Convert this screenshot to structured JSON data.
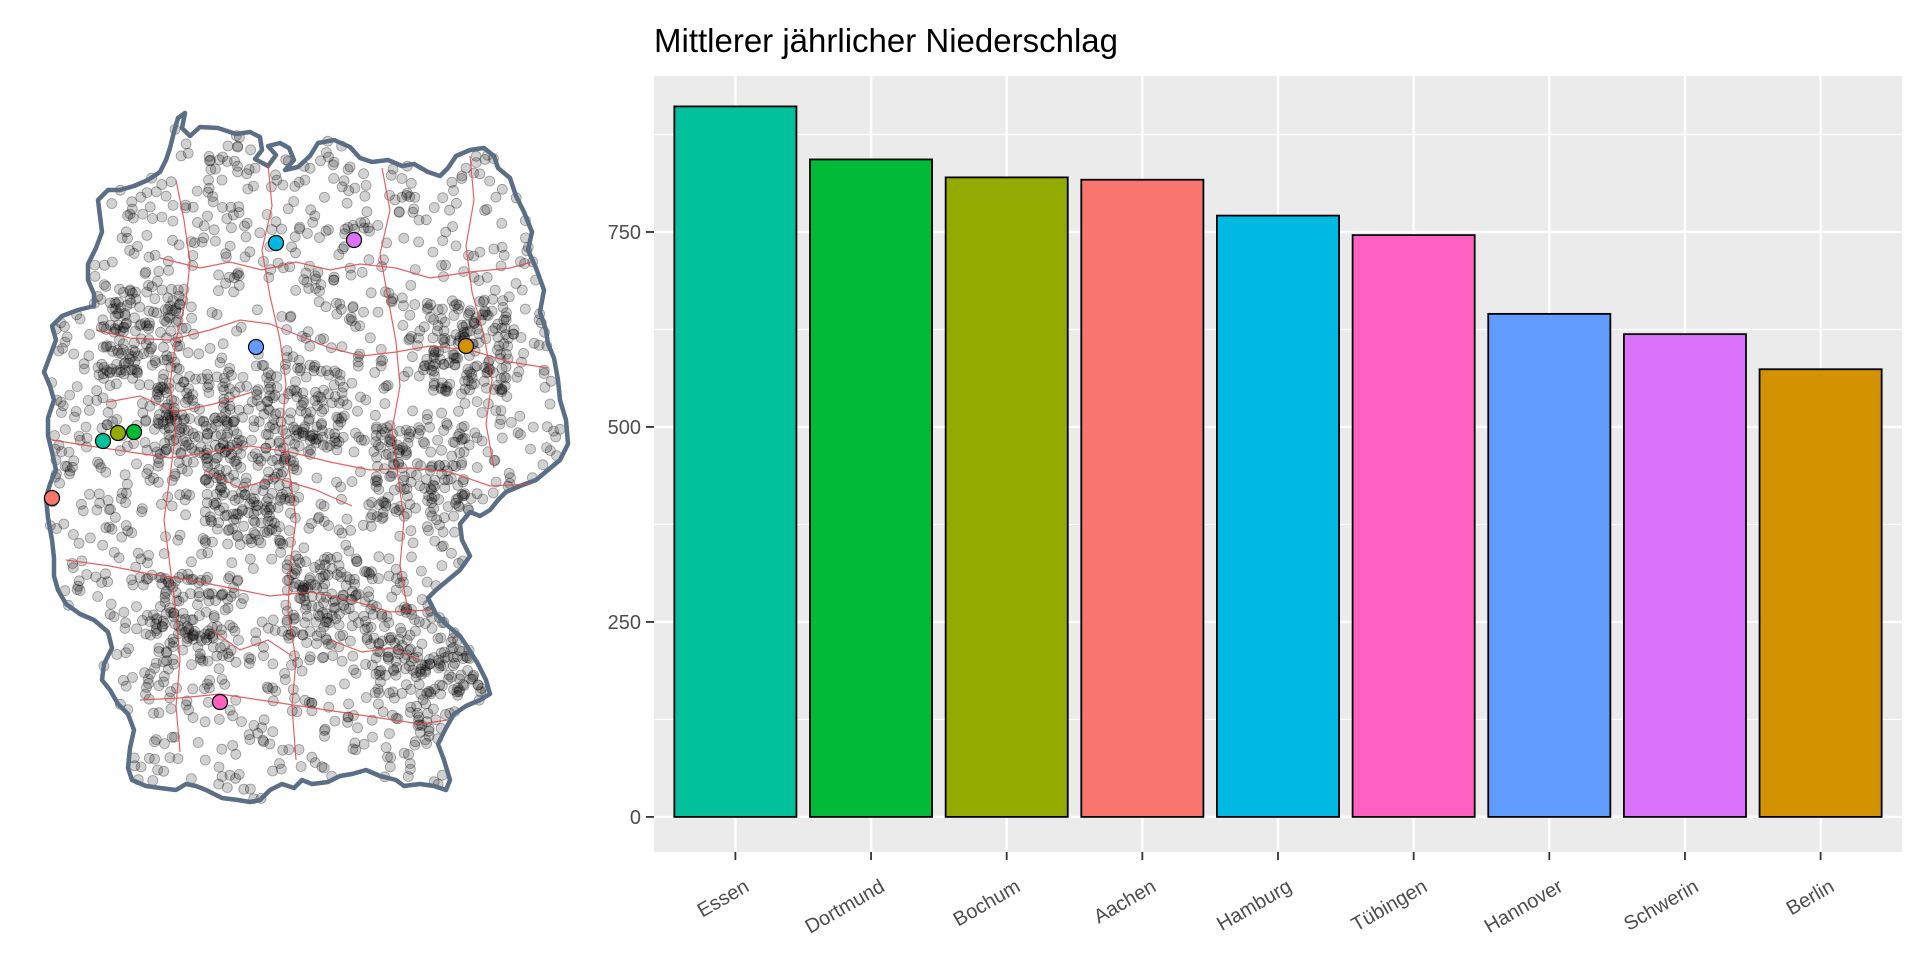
{
  "map": {
    "outline_color": "#5a6e85",
    "state_border_color": "#e0474c",
    "station_color": "#000000",
    "markers": [
      {
        "city": "Essen",
        "color": "#00C19A"
      },
      {
        "city": "Dortmund",
        "color": "#00BA38"
      },
      {
        "city": "Bochum",
        "color": "#93AA00"
      },
      {
        "city": "Aachen",
        "color": "#F8766D"
      },
      {
        "city": "Hamburg",
        "color": "#00B9E3"
      },
      {
        "city": "Tübingen",
        "color": "#FF61C3"
      },
      {
        "city": "Hannover",
        "color": "#619CFF"
      },
      {
        "city": "Schwerin",
        "color": "#DB72FB"
      },
      {
        "city": "Berlin",
        "color": "#D39200"
      }
    ]
  },
  "chart_data": {
    "type": "bar",
    "title": "Mittlerer jährlicher Niederschlag",
    "xlabel": "",
    "ylabel": "",
    "categories": [
      "Essen",
      "Dortmund",
      "Bochum",
      "Aachen",
      "Hamburg",
      "Tübingen",
      "Hannover",
      "Schwerin",
      "Berlin"
    ],
    "values": [
      911,
      843,
      820,
      817,
      771,
      746,
      645,
      619,
      574
    ],
    "colors": [
      "#00C19A",
      "#00BA38",
      "#93AA00",
      "#F8766D",
      "#00B9E3",
      "#FF61C3",
      "#619CFF",
      "#DB72FB",
      "#D39200"
    ],
    "ylim": [
      -45,
      950
    ],
    "yticks": [
      0,
      250,
      500,
      750
    ],
    "panel_background": "#EBEBEB",
    "grid": true,
    "legend": "none"
  }
}
